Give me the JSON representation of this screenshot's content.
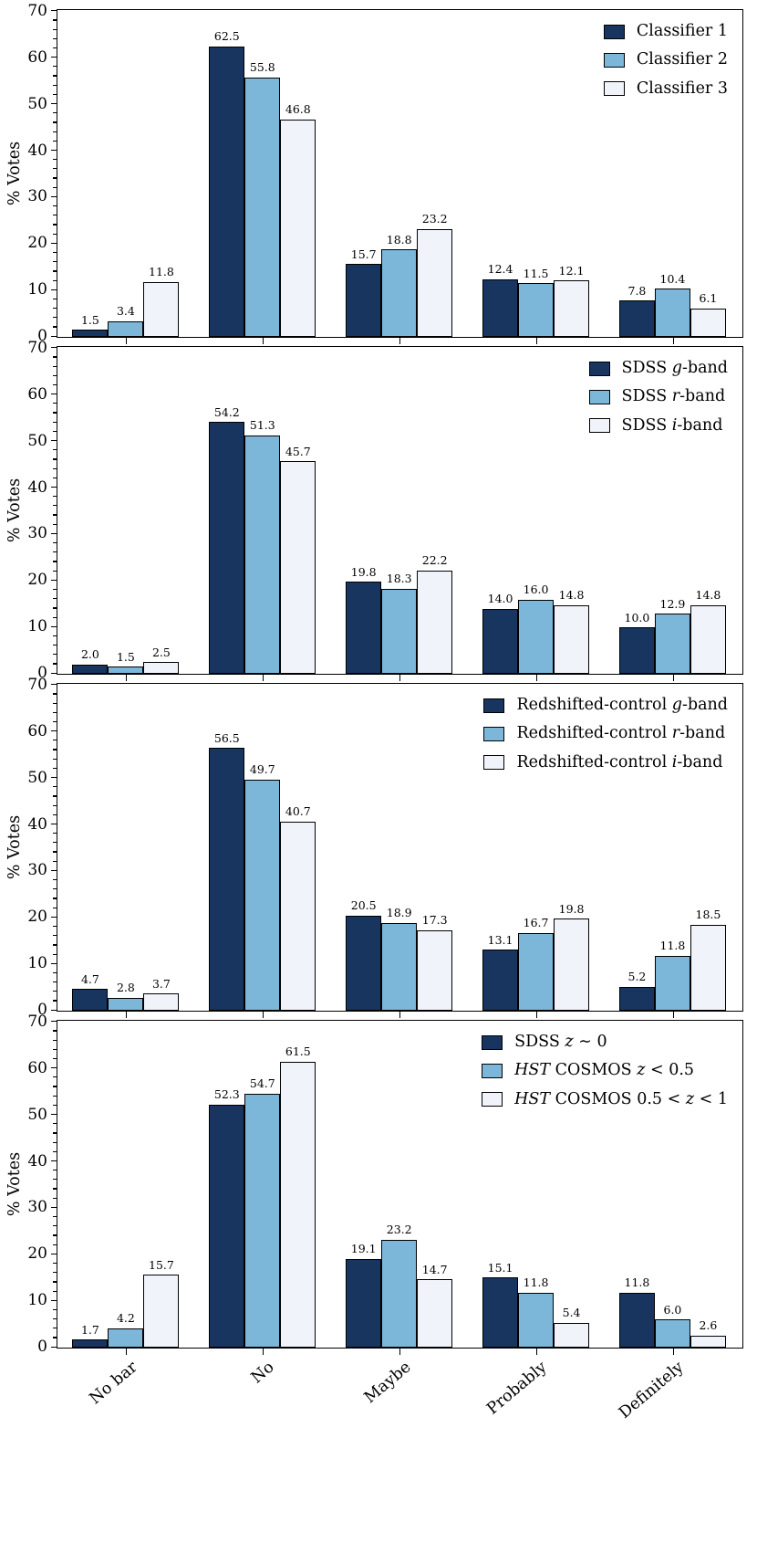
{
  "figure": {
    "ylabel": "% Votes",
    "categories": [
      "No bar",
      "No",
      "Maybe",
      "Probably",
      "Definitely"
    ],
    "ylim": [
      0,
      70
    ],
    "ytick_step": 10,
    "background": "#ffffff",
    "edge_color": "#000000",
    "series_colors": {
      "dark": "#17355f",
      "medium": "#7cb7d9",
      "light": "#f0f4fa"
    }
  },
  "chart_data": [
    {
      "type": "bar",
      "ylabel": "% Votes",
      "ylim": [
        0,
        70
      ],
      "categories": [
        "No bar",
        "No",
        "Maybe",
        "Probably",
        "Definitely"
      ],
      "legend_position": "upper right",
      "show_x_tick_labels": false,
      "series": [
        {
          "name": "Classifier 1",
          "color": "#17355f",
          "values": [
            1.5,
            62.5,
            15.7,
            12.4,
            7.8
          ]
        },
        {
          "name": "Classifier 2",
          "color": "#7cb7d9",
          "values": [
            3.4,
            55.8,
            18.8,
            11.5,
            10.4
          ]
        },
        {
          "name": "Classifier 3",
          "color": "#f0f4fa",
          "values": [
            11.8,
            46.8,
            23.2,
            12.1,
            6.1
          ]
        }
      ]
    },
    {
      "type": "bar",
      "ylabel": "% Votes",
      "ylim": [
        0,
        70
      ],
      "categories": [
        "No bar",
        "No",
        "Maybe",
        "Probably",
        "Definitely"
      ],
      "legend_position": "upper right",
      "show_x_tick_labels": false,
      "series": [
        {
          "name": "SDSS _g_-band",
          "color": "#17355f",
          "values": [
            2.0,
            54.2,
            19.8,
            14.0,
            10.0
          ]
        },
        {
          "name": "SDSS _r_-band",
          "color": "#7cb7d9",
          "values": [
            1.5,
            51.3,
            18.3,
            16.0,
            12.9
          ]
        },
        {
          "name": "SDSS _i_-band",
          "color": "#f0f4fa",
          "values": [
            2.5,
            45.7,
            22.2,
            14.8,
            14.8
          ]
        }
      ]
    },
    {
      "type": "bar",
      "ylabel": "% Votes",
      "ylim": [
        0,
        70
      ],
      "categories": [
        "No bar",
        "No",
        "Maybe",
        "Probably",
        "Definitely"
      ],
      "legend_position": "upper right",
      "show_x_tick_labels": false,
      "series": [
        {
          "name": "Redshifted-control _g_-band",
          "color": "#17355f",
          "values": [
            4.7,
            56.5,
            20.5,
            13.1,
            5.2
          ]
        },
        {
          "name": "Redshifted-control _r_-band",
          "color": "#7cb7d9",
          "values": [
            2.8,
            49.7,
            18.9,
            16.7,
            11.8
          ]
        },
        {
          "name": "Redshifted-control _i_-band",
          "color": "#f0f4fa",
          "values": [
            3.7,
            40.7,
            17.3,
            19.8,
            18.5
          ]
        }
      ]
    },
    {
      "type": "bar",
      "ylabel": "% Votes",
      "ylim": [
        0,
        70
      ],
      "categories": [
        "No bar",
        "No",
        "Maybe",
        "Probably",
        "Definitely"
      ],
      "legend_position": "upper right",
      "show_x_tick_labels": true,
      "series": [
        {
          "name": "SDSS _z_ ∼ 0",
          "color": "#17355f",
          "values": [
            1.7,
            52.3,
            19.1,
            15.1,
            11.8
          ]
        },
        {
          "name": "_HST_ COSMOS _z_ < 0.5",
          "color": "#7cb7d9",
          "values": [
            4.2,
            54.7,
            23.2,
            11.8,
            6.0
          ]
        },
        {
          "name": "_HST_ COSMOS 0.5 < _z_ < 1",
          "color": "#f0f4fa",
          "values": [
            15.7,
            61.5,
            14.7,
            5.4,
            2.6
          ]
        }
      ]
    }
  ]
}
